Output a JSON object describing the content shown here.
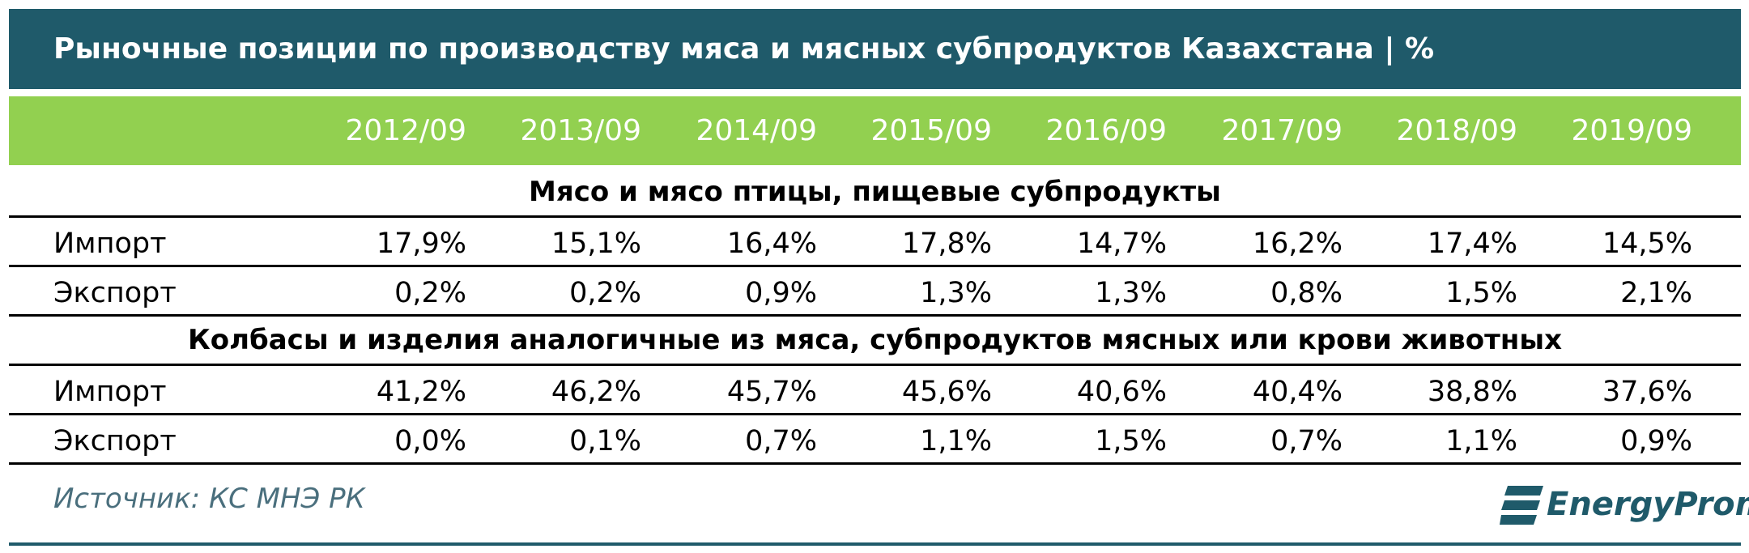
{
  "header": {
    "title": "Рыночные позиции по производству мяса и мясных субпродуктов Казахстана | %"
  },
  "table": {
    "columns": [
      "2012/09",
      "2013/09",
      "2014/09",
      "2015/09",
      "2016/09",
      "2017/09",
      "2018/09",
      "2019/09"
    ],
    "sections": [
      {
        "title": "Мясо и мясо птицы, пищевые субпродукты",
        "rows": [
          {
            "label": "Импорт",
            "values": [
              "17,9%",
              "15,1%",
              "16,4%",
              "17,8%",
              "14,7%",
              "16,2%",
              "17,4%",
              "14,5%"
            ]
          },
          {
            "label": "Экспорт",
            "values": [
              "0,2%",
              "0,2%",
              "0,9%",
              "1,3%",
              "1,3%",
              "0,8%",
              "1,5%",
              "2,1%"
            ]
          }
        ]
      },
      {
        "title": "Колбасы и изделия аналогичные из мяса, субпродуктов мясных или крови животных",
        "rows": [
          {
            "label": "Импорт",
            "values": [
              "41,2%",
              "46,2%",
              "45,7%",
              "45,6%",
              "40,6%",
              "40,4%",
              "38,8%",
              "37,6%"
            ]
          },
          {
            "label": "Экспорт",
            "values": [
              "0,0%",
              "0,1%",
              "0,7%",
              "1,1%",
              "1,5%",
              "0,7%",
              "1,1%",
              "0,9%"
            ]
          }
        ]
      }
    ]
  },
  "footer": {
    "source": "Источник: КС МНЭ РК",
    "logo": "EnergyProm"
  }
}
